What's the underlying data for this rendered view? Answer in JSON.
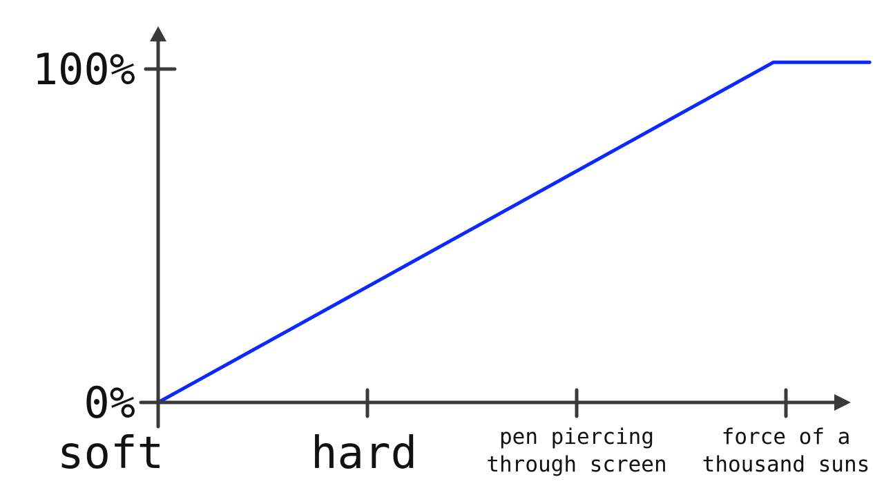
{
  "chart_data": {
    "type": "line",
    "title": "",
    "xlabel": "",
    "ylabel": "",
    "x_categories": [
      {
        "lines": [
          "soft"
        ]
      },
      {
        "lines": [
          "hard"
        ]
      },
      {
        "lines": [
          "pen piercing",
          "through screen"
        ]
      },
      {
        "lines": [
          "force of a",
          "thousand suns"
        ]
      }
    ],
    "y_ticks": [
      {
        "value": 0,
        "label": "0%"
      },
      {
        "value": 100,
        "label": "100%"
      }
    ],
    "ylim": [
      0,
      100
    ],
    "xlim": [
      0,
      3.4
    ],
    "grid": false,
    "legend": "none",
    "series": [
      {
        "color": "#0a28ff",
        "points": [
          {
            "x": 0,
            "y": 0
          },
          {
            "x": 2.94,
            "y": 102
          },
          {
            "x": 3.4,
            "y": 102
          }
        ]
      }
    ],
    "colors": {
      "axis": "#3a3a3a",
      "text": "#111111",
      "series": "#0a28ff"
    }
  }
}
